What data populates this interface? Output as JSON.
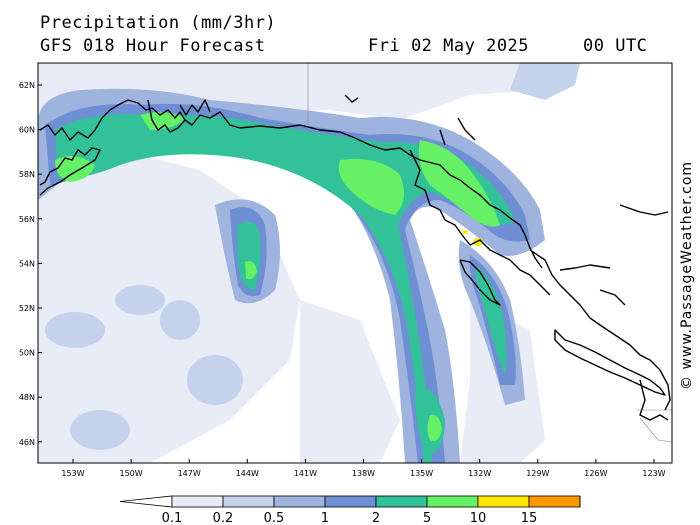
{
  "header": {
    "title": "Precipitation (mm/3hr)",
    "subtitle": "GFS 018 Hour Forecast",
    "date": "Fri 02 May 2025",
    "time": "00 UTC"
  },
  "watermark": "© www.PassageWeather.com",
  "map": {
    "lat_ticks": [
      "62N",
      "60N",
      "58N",
      "56N",
      "54N",
      "52N",
      "50N",
      "48N",
      "46N"
    ],
    "lon_ticks": [
      "153W",
      "150W",
      "147W",
      "144W",
      "141W",
      "138W",
      "135W",
      "132W",
      "129W",
      "126W",
      "123W"
    ]
  },
  "colorbar": {
    "unit": "mm/3hr",
    "labels": [
      "0.1",
      "0.2",
      "0.5",
      "1",
      "2",
      "5",
      "10",
      "15"
    ],
    "colors": [
      "#ffffff",
      "#e8ecf6",
      "#c5d2ec",
      "#9fb3df",
      "#6e8fd4",
      "#33c199",
      "#66f066",
      "#ffe800",
      "#ff9900",
      "#ee3333"
    ]
  }
}
